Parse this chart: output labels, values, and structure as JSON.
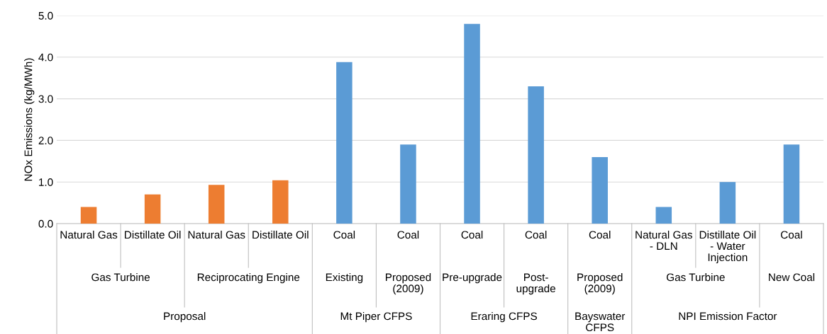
{
  "chart_data": {
    "type": "bar",
    "ylabel": "NOx Emissions (kg/MWh)",
    "categories": [
      "Natural Gas",
      "Distillate Oil",
      "Natural Gas",
      "Distillate Oil",
      "Coal",
      "Coal",
      "Coal",
      "Coal",
      "Coal",
      "Natural Gas\n- DLN",
      "Distillate Oil\n- Water\nInjection",
      "Coal"
    ],
    "values": [
      0.4,
      0.7,
      0.93,
      1.04,
      3.88,
      1.9,
      4.8,
      3.3,
      1.6,
      0.4,
      1.0,
      1.9
    ],
    "colors": [
      "#ed7d31",
      "#ed7d31",
      "#ed7d31",
      "#ed7d31",
      "#5b9bd5",
      "#5b9bd5",
      "#5b9bd5",
      "#5b9bd5",
      "#5b9bd5",
      "#5b9bd5",
      "#5b9bd5",
      "#5b9bd5"
    ],
    "annotations": [
      "Gas Turbine",
      "Reciprocating Engine",
      "Existing",
      "Proposed\n(2009)",
      "Pre-upgrade",
      "Post-\nupgrade",
      "Proposed\n(2009)",
      "Gas Turbine",
      "New Coal",
      "Proposal",
      "Mt Piper CFPS",
      "Eraring CFPS",
      "Bayswater\nCFPS",
      "NPI Emission Factor"
    ],
    "ylim": [
      0,
      5
    ],
    "yticks": [
      {
        "value": 0,
        "label": "0.0"
      },
      {
        "value": 1,
        "label": "1.0"
      },
      {
        "value": 2,
        "label": "2.0"
      },
      {
        "value": 3,
        "label": "3.0"
      },
      {
        "value": 4,
        "label": "4.0"
      },
      {
        "value": 5,
        "label": "5.0"
      }
    ],
    "grid": "y"
  }
}
